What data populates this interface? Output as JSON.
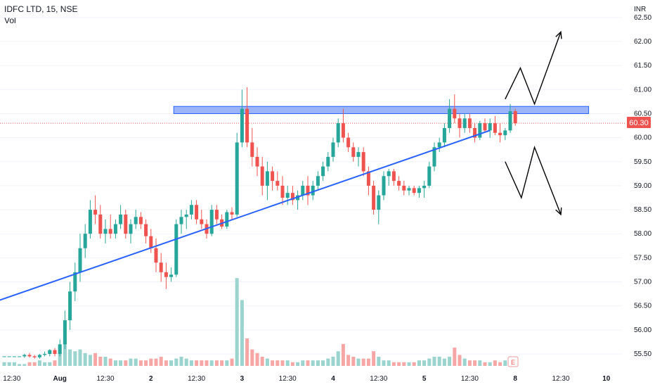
{
  "header": {
    "symbol_line": "IDFC LTD, 15, NSE",
    "vol_label": "Vol"
  },
  "currency": "INR",
  "price_badge": "60.30",
  "volume_badge": "E",
  "colors": {
    "up": "#26a69a",
    "down": "#ef5350",
    "up_vol": "#9bd4cf",
    "down_vol": "#f6a7a5",
    "trendline": "#2962ff",
    "resistance_fill": "#7b9cf5",
    "resistance_stroke": "#2962ff",
    "last_price_line": "#ef5350",
    "arrow": "#000000"
  },
  "chart_data": {
    "type": "candlestick",
    "title": "IDFC LTD, 15, NSE",
    "y_ticks": [
      "62.50",
      "62.00",
      "61.50",
      "61.00",
      "60.50",
      "60.00",
      "59.50",
      "59.00",
      "58.50",
      "58.00",
      "57.50",
      "57.00",
      "56.50",
      "56.00",
      "55.50"
    ],
    "ylim": [
      55.3,
      62.7
    ],
    "x_ticks": [
      {
        "label": "12:30",
        "i": 1.5
      },
      {
        "label": "Aug",
        "i": 11
      },
      {
        "label": "12:30",
        "i": 20
      },
      {
        "label": "2",
        "i": 29
      },
      {
        "label": "12:30",
        "i": 38
      },
      {
        "label": "3",
        "i": 47
      },
      {
        "label": "12:30",
        "i": 56
      },
      {
        "label": "4",
        "i": 65
      },
      {
        "label": "12:30",
        "i": 74
      },
      {
        "label": "5",
        "i": 83
      },
      {
        "label": "12:30",
        "i": 92
      },
      {
        "label": "8",
        "i": 101
      },
      {
        "label": "12:30",
        "i": 110
      },
      {
        "label": "10",
        "i": 119
      }
    ],
    "last_price": 60.3,
    "candles": [
      [
        55.45,
        55.45,
        55.45,
        55.45
      ],
      [
        55.45,
        55.45,
        55.45,
        55.45
      ],
      [
        55.45,
        55.45,
        55.45,
        55.45
      ],
      [
        55.45,
        55.45,
        55.45,
        55.45
      ],
      [
        55.45,
        55.5,
        55.42,
        55.48
      ],
      [
        55.48,
        55.52,
        55.42,
        55.45
      ],
      [
        55.45,
        55.48,
        55.4,
        55.43
      ],
      [
        55.43,
        55.5,
        55.4,
        55.48
      ],
      [
        55.48,
        55.55,
        55.45,
        55.5
      ],
      [
        55.5,
        55.6,
        55.45,
        55.58
      ],
      [
        55.58,
        55.62,
        55.45,
        55.5
      ],
      [
        55.5,
        55.8,
        55.45,
        55.7
      ],
      [
        55.7,
        56.4,
        55.6,
        56.2
      ],
      [
        56.2,
        57.0,
        56.0,
        56.8
      ],
      [
        56.8,
        57.4,
        56.6,
        57.2
      ],
      [
        57.2,
        58.0,
        57.0,
        57.7
      ],
      [
        57.7,
        58.2,
        57.5,
        58.0
      ],
      [
        58.0,
        58.7,
        57.9,
        58.5
      ],
      [
        58.5,
        58.8,
        58.2,
        58.4
      ],
      [
        58.4,
        58.6,
        57.9,
        58.0
      ],
      [
        58.0,
        58.3,
        57.8,
        58.1
      ],
      [
        58.1,
        58.4,
        57.9,
        58.0
      ],
      [
        58.0,
        58.3,
        57.9,
        58.2
      ],
      [
        58.2,
        58.6,
        58.1,
        58.4
      ],
      [
        58.4,
        58.5,
        57.9,
        58.0
      ],
      [
        58.0,
        58.3,
        57.8,
        58.2
      ],
      [
        58.2,
        58.5,
        58.1,
        58.35
      ],
      [
        58.35,
        58.45,
        58.1,
        58.2
      ],
      [
        58.2,
        58.3,
        57.8,
        57.95
      ],
      [
        57.95,
        58.1,
        57.6,
        57.7
      ],
      [
        57.7,
        57.9,
        57.2,
        57.4
      ],
      [
        57.4,
        57.6,
        57.0,
        57.2
      ],
      [
        57.2,
        57.4,
        56.85,
        57.1
      ],
      [
        57.1,
        57.3,
        57.0,
        57.15
      ],
      [
        57.15,
        58.3,
        57.1,
        58.2
      ],
      [
        58.2,
        58.5,
        58.0,
        58.35
      ],
      [
        58.35,
        58.5,
        58.1,
        58.4
      ],
      [
        58.4,
        58.7,
        58.3,
        58.6
      ],
      [
        58.6,
        58.7,
        58.2,
        58.3
      ],
      [
        58.3,
        58.5,
        58.1,
        58.2
      ],
      [
        58.2,
        58.3,
        57.9,
        58.0
      ],
      [
        58.0,
        58.6,
        57.95,
        58.5
      ],
      [
        58.5,
        58.6,
        58.2,
        58.3
      ],
      [
        58.3,
        58.4,
        58.1,
        58.15
      ],
      [
        58.15,
        58.5,
        58.1,
        58.45
      ],
      [
        58.45,
        58.55,
        58.3,
        58.4
      ],
      [
        58.4,
        60.1,
        58.35,
        59.9
      ],
      [
        59.9,
        61.0,
        59.8,
        60.6
      ],
      [
        60.6,
        61.05,
        59.8,
        59.9
      ],
      [
        59.9,
        60.2,
        59.4,
        59.6
      ],
      [
        59.6,
        59.8,
        59.2,
        59.4
      ],
      [
        59.4,
        59.6,
        58.8,
        59.0
      ],
      [
        59.0,
        59.5,
        58.7,
        59.3
      ],
      [
        59.3,
        59.4,
        58.9,
        59.1
      ],
      [
        59.1,
        59.3,
        58.9,
        59.0
      ],
      [
        59.0,
        59.2,
        58.6,
        58.75
      ],
      [
        58.75,
        59.0,
        58.6,
        58.85
      ],
      [
        58.85,
        59.0,
        58.6,
        58.7
      ],
      [
        58.7,
        58.9,
        58.5,
        58.8
      ],
      [
        58.8,
        59.1,
        58.7,
        59.0
      ],
      [
        59.0,
        59.2,
        58.6,
        58.8
      ],
      [
        58.8,
        59.1,
        58.7,
        59.0
      ],
      [
        59.0,
        59.3,
        58.9,
        59.2
      ],
      [
        59.2,
        59.5,
        59.1,
        59.4
      ],
      [
        59.4,
        59.7,
        59.3,
        59.6
      ],
      [
        59.6,
        60.0,
        59.5,
        59.9
      ],
      [
        59.9,
        60.4,
        59.8,
        60.3
      ],
      [
        60.3,
        60.6,
        59.9,
        60.0
      ],
      [
        60.0,
        60.1,
        59.7,
        59.8
      ],
      [
        59.8,
        59.9,
        59.5,
        59.6
      ],
      [
        59.6,
        59.8,
        59.4,
        59.7
      ],
      [
        59.7,
        59.8,
        59.2,
        59.3
      ],
      [
        59.3,
        59.4,
        58.8,
        59.0
      ],
      [
        59.0,
        59.1,
        58.4,
        58.5
      ],
      [
        58.5,
        58.9,
        58.2,
        58.8
      ],
      [
        58.8,
        59.3,
        58.7,
        59.2
      ],
      [
        59.2,
        59.35,
        59.0,
        59.3
      ],
      [
        59.3,
        59.35,
        59.0,
        59.1
      ],
      [
        59.1,
        59.2,
        58.9,
        59.0
      ],
      [
        59.0,
        59.1,
        58.8,
        58.9
      ],
      [
        58.9,
        59.0,
        58.8,
        58.95
      ],
      [
        58.95,
        59.0,
        58.8,
        58.85
      ],
      [
        58.85,
        59.0,
        58.75,
        58.95
      ],
      [
        58.95,
        59.1,
        58.75,
        59.0
      ],
      [
        59.0,
        59.5,
        58.95,
        59.4
      ],
      [
        59.4,
        59.9,
        59.3,
        59.8
      ],
      [
        59.8,
        60.0,
        59.7,
        59.9
      ],
      [
        59.9,
        60.3,
        59.8,
        60.2
      ],
      [
        60.2,
        60.8,
        60.1,
        60.6
      ],
      [
        60.6,
        60.9,
        60.3,
        60.4
      ],
      [
        60.4,
        60.5,
        60.0,
        60.2
      ],
      [
        60.2,
        60.5,
        60.1,
        60.4
      ],
      [
        60.4,
        60.5,
        60.1,
        60.2
      ],
      [
        60.2,
        60.3,
        59.9,
        60.0
      ],
      [
        60.0,
        60.35,
        59.95,
        60.3
      ],
      [
        60.3,
        60.4,
        60.1,
        60.15
      ],
      [
        60.15,
        60.4,
        60.0,
        60.3
      ],
      [
        60.3,
        60.45,
        60.05,
        60.1
      ],
      [
        60.1,
        60.3,
        59.9,
        60.05
      ],
      [
        60.05,
        60.2,
        59.95,
        60.15
      ],
      [
        60.15,
        60.7,
        60.1,
        60.55
      ],
      [
        60.55,
        60.6,
        60.25,
        60.3
      ]
    ],
    "volumes": [
      2,
      2,
      2,
      1,
      1,
      2,
      2,
      3,
      2,
      2,
      3,
      11,
      13,
      9,
      8,
      9,
      7,
      6,
      7,
      5,
      5,
      4,
      3,
      3,
      3,
      4,
      4,
      3,
      3,
      4,
      4,
      5,
      3,
      3,
      4,
      5,
      4,
      3,
      3,
      3,
      3,
      3,
      3,
      3,
      3,
      4,
      48,
      36,
      15,
      9,
      7,
      5,
      4,
      3,
      3,
      3,
      3,
      2,
      2,
      3,
      3,
      3,
      3,
      3,
      4,
      5,
      8,
      12,
      6,
      5,
      4,
      4,
      4,
      8,
      5,
      3,
      3,
      2,
      2,
      2,
      2,
      2,
      3,
      3,
      4,
      5,
      5,
      4,
      5,
      10,
      6,
      4,
      3,
      3,
      3,
      2,
      2,
      3,
      2,
      3,
      5,
      4
    ],
    "resistance_zone": [
      60.5,
      60.65
    ],
    "support_line": {
      "start": {
        "i": -5.5,
        "price": 56.45
      },
      "end": {
        "i": 96,
        "price": 60.15
      }
    },
    "annotation_arrows": [
      {
        "points": [
          {
            "i": 99,
            "price": 60.8
          },
          {
            "i": 102,
            "price": 61.45
          },
          {
            "i": 104.8,
            "price": 60.7
          },
          {
            "i": 110,
            "price": 62.2
          }
        ]
      },
      {
        "points": [
          {
            "i": 99,
            "price": 59.5
          },
          {
            "i": 102.2,
            "price": 58.75
          },
          {
            "i": 104.8,
            "price": 59.8
          },
          {
            "i": 110,
            "price": 58.4
          }
        ]
      }
    ]
  }
}
